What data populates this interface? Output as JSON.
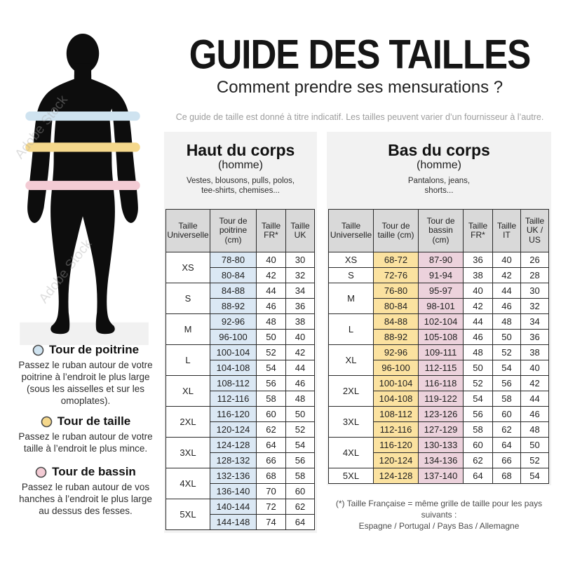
{
  "header": {
    "title": "GUIDE DES TAILLES",
    "subtitle": "Comment prendre ses mensurations ?",
    "disclaimer": "Ce guide de taille est donné à titre indicatif. Les tailles peuvent varier d’un fournisseur à l’autre."
  },
  "figure": {
    "watermark": "Adobe Stock",
    "silhouette_color": "#0d0d0d",
    "base_color": "#f1f1f1"
  },
  "legend": [
    {
      "title": "Tour de poitrine",
      "color": "#cfe3f0",
      "text": "Passez le ruban autour de votre poitrine à l’endroit le plus large (sous les aisselles et sur les omoplates)."
    },
    {
      "title": "Tour de taille",
      "color": "#f5d88c",
      "text": "Passez le ruban autour de votre taille à l’endroit le plus mince."
    },
    {
      "title": "Tour de bassin",
      "color": "#f3cbd4",
      "text": "Passez le ruban autour de vos hanches à l’endroit le plus large au dessus des fesses."
    }
  ],
  "upper_section": {
    "title": "Haut du corps",
    "subtitle": "(homme)",
    "items": "Vestes, blousons, pulls, polos,\ntee-shirts, chemises...",
    "table": {
      "columns": [
        "Taille Universelle",
        "Tour de poitrine (cm)",
        "Taille FR*",
        "Taille UK"
      ],
      "col_colors": [
        "#ffffff",
        "#dbe8f4",
        "#ffffff",
        "#ffffff"
      ],
      "groups": [
        {
          "size": "XS",
          "rows": [
            [
              "78-80",
              "40",
              "30"
            ],
            [
              "80-84",
              "42",
              "32"
            ]
          ]
        },
        {
          "size": "S",
          "rows": [
            [
              "84-88",
              "44",
              "34"
            ],
            [
              "88-92",
              "46",
              "36"
            ]
          ]
        },
        {
          "size": "M",
          "rows": [
            [
              "92-96",
              "48",
              "38"
            ],
            [
              "96-100",
              "50",
              "40"
            ]
          ]
        },
        {
          "size": "L",
          "rows": [
            [
              "100-104",
              "52",
              "42"
            ],
            [
              "104-108",
              "54",
              "44"
            ]
          ]
        },
        {
          "size": "XL",
          "rows": [
            [
              "108-112",
              "56",
              "46"
            ],
            [
              "112-116",
              "58",
              "48"
            ]
          ]
        },
        {
          "size": "2XL",
          "rows": [
            [
              "116-120",
              "60",
              "50"
            ],
            [
              "120-124",
              "62",
              "52"
            ]
          ]
        },
        {
          "size": "3XL",
          "rows": [
            [
              "124-128",
              "64",
              "54"
            ],
            [
              "128-132",
              "66",
              "56"
            ]
          ]
        },
        {
          "size": "4XL",
          "rows": [
            [
              "132-136",
              "68",
              "58"
            ],
            [
              "136-140",
              "70",
              "60"
            ]
          ]
        },
        {
          "size": "5XL",
          "rows": [
            [
              "140-144",
              "72",
              "62"
            ],
            [
              "144-148",
              "74",
              "64"
            ]
          ]
        }
      ]
    }
  },
  "lower_section": {
    "title": "Bas du corps",
    "subtitle": "(homme)",
    "items": "Pantalons, jeans,\nshorts...",
    "table": {
      "columns": [
        "Taille Universelle",
        "Tour de taille (cm)",
        "Tour de bassin (cm)",
        "Taille FR*",
        "Taille IT",
        "Taille UK / US"
      ],
      "col_colors": [
        "#ffffff",
        "#fbe2a0",
        "#ecd2dc",
        "#ffffff",
        "#ffffff",
        "#ffffff"
      ],
      "groups": [
        {
          "size": "XS",
          "rows": [
            [
              "68-72",
              "87-90",
              "36",
              "40",
              "26"
            ]
          ]
        },
        {
          "size": "S",
          "rows": [
            [
              "72-76",
              "91-94",
              "38",
              "42",
              "28"
            ]
          ]
        },
        {
          "size": "M",
          "rows": [
            [
              "76-80",
              "95-97",
              "40",
              "44",
              "30"
            ],
            [
              "80-84",
              "98-101",
              "42",
              "46",
              "32"
            ]
          ]
        },
        {
          "size": "L",
          "rows": [
            [
              "84-88",
              "102-104",
              "44",
              "48",
              "34"
            ],
            [
              "88-92",
              "105-108",
              "46",
              "50",
              "36"
            ]
          ]
        },
        {
          "size": "XL",
          "rows": [
            [
              "92-96",
              "109-111",
              "48",
              "52",
              "38"
            ],
            [
              "96-100",
              "112-115",
              "50",
              "54",
              "40"
            ]
          ]
        },
        {
          "size": "2XL",
          "rows": [
            [
              "100-104",
              "116-118",
              "52",
              "56",
              "42"
            ],
            [
              "104-108",
              "119-122",
              "54",
              "58",
              "44"
            ]
          ]
        },
        {
          "size": "3XL",
          "rows": [
            [
              "108-112",
              "123-126",
              "56",
              "60",
              "46"
            ],
            [
              "112-116",
              "127-129",
              "58",
              "62",
              "48"
            ]
          ]
        },
        {
          "size": "4XL",
          "rows": [
            [
              "116-120",
              "130-133",
              "60",
              "64",
              "50"
            ],
            [
              "120-124",
              "134-136",
              "62",
              "66",
              "52"
            ]
          ]
        },
        {
          "size": "5XL",
          "rows": [
            [
              "124-128",
              "137-140",
              "64",
              "68",
              "54"
            ]
          ]
        }
      ]
    }
  },
  "footnote": {
    "line1": "(*) Taille Française = même grille de taille pour les pays suivants :",
    "line2": "Espagne / Portugal / Pays Bas / Allemagne"
  }
}
